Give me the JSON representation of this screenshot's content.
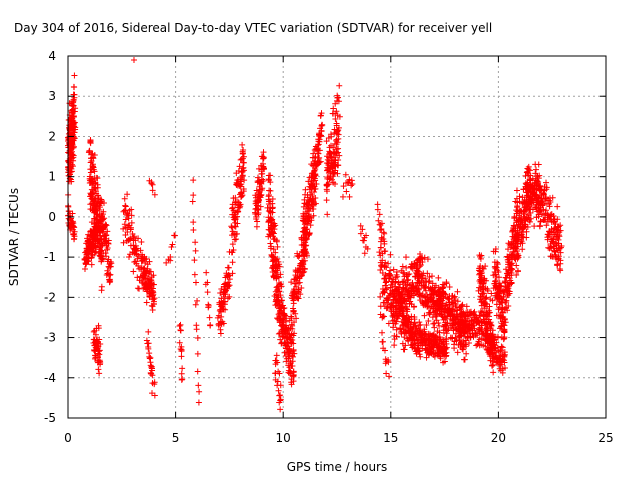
{
  "chart_data": {
    "type": "scatter",
    "title": "Day 304 of 2016, Sidereal Day-to-day VTEC variation (SDTVAR) for receiver yell",
    "xlabel": "GPS time / hours",
    "ylabel": "SDTVAR / TECUs",
    "xlim": [
      0,
      25
    ],
    "ylim": [
      -5,
      4
    ],
    "grid": true,
    "marker": "+",
    "color": "#ff0000",
    "x_ticks": [
      "0",
      "5",
      "10",
      "15",
      "20",
      "25"
    ],
    "y_ticks": [
      "-5",
      "-4",
      "-3",
      "-2",
      "-1",
      "0",
      "1",
      "2",
      "3",
      "4"
    ],
    "series": [
      {
        "name": "SDTVAR",
        "segments": [
          {
            "x": [
              0.0,
              0.3
            ],
            "y": [
              1.5,
              2.5
            ],
            "noise": 1.3,
            "n": 180
          },
          {
            "x": [
              0.0,
              0.3
            ],
            "y": [
              0.2,
              -0.5
            ],
            "noise": 0.4,
            "n": 40
          },
          {
            "x": [
              0.8,
              1.3
            ],
            "y": [
              -1.0,
              -0.5
            ],
            "noise": 0.6,
            "n": 120
          },
          {
            "x": [
              1.0,
              1.6
            ],
            "y": [
              1.2,
              -0.8
            ],
            "noise": 1.4,
            "n": 180
          },
          {
            "x": [
              1.2,
              1.5
            ],
            "y": [
              -3.0,
              -3.5
            ],
            "noise": 0.7,
            "n": 50
          },
          {
            "x": [
              1.5,
              2.0
            ],
            "y": [
              0.2,
              -1.5
            ],
            "noise": 0.8,
            "n": 70
          },
          {
            "x": [
              2.6,
              3.3
            ],
            "y": [
              0.2,
              -1.2
            ],
            "noise": 0.9,
            "n": 70
          },
          {
            "x": [
              3.4,
              4.0
            ],
            "y": [
              -1.2,
              -2.0
            ],
            "noise": 0.7,
            "n": 110
          },
          {
            "x": [
              3.7,
              4.0
            ],
            "y": [
              -3.0,
              -4.3
            ],
            "noise": 0.5,
            "n": 25
          },
          {
            "x": [
              3.8,
              4.0
            ],
            "y": [
              0.9,
              0.6
            ],
            "noise": 0.2,
            "n": 6
          },
          {
            "x": [
              4.6,
              5.0
            ],
            "y": [
              -1.2,
              -0.5
            ],
            "noise": 0.3,
            "n": 8
          },
          {
            "x": [
              5.2,
              5.3
            ],
            "y": [
              -2.5,
              -4.1
            ],
            "noise": 0.3,
            "n": 14
          },
          {
            "x": [
              5.8,
              6.1
            ],
            "y": [
              0.8,
              -4.5
            ],
            "noise": 0.4,
            "n": 20
          },
          {
            "x": [
              6.4,
              6.6
            ],
            "y": [
              -1.5,
              -2.8
            ],
            "noise": 0.3,
            "n": 10
          },
          {
            "x": [
              7.0,
              7.5
            ],
            "y": [
              -2.6,
              -1.4
            ],
            "noise": 0.8,
            "n": 70
          },
          {
            "x": [
              7.6,
              8.2
            ],
            "y": [
              -0.5,
              1.2
            ],
            "noise": 1.2,
            "n": 100
          },
          {
            "x": [
              8.7,
              9.1
            ],
            "y": [
              0.0,
              1.2
            ],
            "noise": 0.8,
            "n": 70
          },
          {
            "x": [
              9.3,
              9.9
            ],
            "y": [
              0.5,
              -2.5
            ],
            "noise": 1.5,
            "n": 160
          },
          {
            "x": [
              9.6,
              9.9
            ],
            "y": [
              -3.5,
              -4.6
            ],
            "noise": 0.6,
            "n": 20
          },
          {
            "x": [
              9.9,
              10.5
            ],
            "y": [
              -2.5,
              -3.6
            ],
            "noise": 1.0,
            "n": 130
          },
          {
            "x": [
              10.4,
              11.1
            ],
            "y": [
              -2.3,
              -0.5
            ],
            "noise": 1.0,
            "n": 120
          },
          {
            "x": [
              10.9,
              11.5
            ],
            "y": [
              -0.5,
              1.0
            ],
            "noise": 1.3,
            "n": 130
          },
          {
            "x": [
              11.4,
              11.8
            ],
            "y": [
              1.0,
              2.2
            ],
            "noise": 0.8,
            "n": 60
          },
          {
            "x": [
              12.0,
              12.6
            ],
            "y": [
              1.0,
              2.0
            ],
            "noise": 1.1,
            "n": 110
          },
          {
            "x": [
              12.3,
              12.6
            ],
            "y": [
              2.5,
              3.0
            ],
            "noise": 0.4,
            "n": 12
          },
          {
            "x": [
              12.8,
              13.2
            ],
            "y": [
              0.8,
              0.8
            ],
            "noise": 0.4,
            "n": 12
          },
          {
            "x": [
              13.6,
              13.9
            ],
            "y": [
              -0.3,
              -1.0
            ],
            "noise": 0.5,
            "n": 10
          },
          {
            "x": [
              14.4,
              14.7
            ],
            "y": [
              0.2,
              -0.8
            ],
            "noise": 0.5,
            "n": 15
          },
          {
            "x": [
              14.5,
              15.3
            ],
            "y": [
              -1.2,
              -2.5
            ],
            "noise": 1.5,
            "n": 110
          },
          {
            "x": [
              14.6,
              14.9
            ],
            "y": [
              -3.0,
              -4.0
            ],
            "noise": 0.5,
            "n": 12
          },
          {
            "x": [
              15.1,
              16.3
            ],
            "y": [
              -2.0,
              -1.5
            ],
            "noise": 0.9,
            "n": 160
          },
          {
            "x": [
              15.4,
              16.3
            ],
            "y": [
              -2.4,
              -3.2
            ],
            "noise": 0.8,
            "n": 140
          },
          {
            "x": [
              16.2,
              17.3
            ],
            "y": [
              -1.4,
              -2.4
            ],
            "noise": 1.0,
            "n": 160
          },
          {
            "x": [
              16.3,
              17.6
            ],
            "y": [
              -3.0,
              -3.3
            ],
            "noise": 0.5,
            "n": 170
          },
          {
            "x": [
              17.2,
              18.5
            ],
            "y": [
              -2.0,
              -3.0
            ],
            "noise": 1.0,
            "n": 220
          },
          {
            "x": [
              18.2,
              19.3
            ],
            "y": [
              -2.5,
              -2.8
            ],
            "noise": 0.7,
            "n": 130
          },
          {
            "x": [
              19.1,
              19.8
            ],
            "y": [
              -1.4,
              -3.4
            ],
            "noise": 1.2,
            "n": 150
          },
          {
            "x": [
              19.4,
              20.3
            ],
            "y": [
              -3.0,
              -3.6
            ],
            "noise": 0.6,
            "n": 90
          },
          {
            "x": [
              19.8,
              20.3
            ],
            "y": [
              -1.2,
              -2.8
            ],
            "noise": 1.1,
            "n": 100
          },
          {
            "x": [
              20.3,
              20.9
            ],
            "y": [
              -2.0,
              -0.2
            ],
            "noise": 1.2,
            "n": 130
          },
          {
            "x": [
              20.8,
              21.5
            ],
            "y": [
              -0.5,
              0.5
            ],
            "noise": 1.1,
            "n": 140
          },
          {
            "x": [
              21.3,
              22.0
            ],
            "y": [
              0.8,
              0.3
            ],
            "noise": 0.8,
            "n": 100
          },
          {
            "x": [
              21.7,
              22.9
            ],
            "y": [
              0.8,
              -0.6
            ],
            "noise": 0.9,
            "n": 120
          },
          {
            "x": [
              22.3,
              22.9
            ],
            "y": [
              -0.5,
              -1.1
            ],
            "noise": 0.5,
            "n": 40
          },
          {
            "x": [
              3.1,
              3.1
            ],
            "y": [
              3.9,
              3.9
            ],
            "noise": 0.0,
            "n": 1
          }
        ]
      }
    ]
  }
}
